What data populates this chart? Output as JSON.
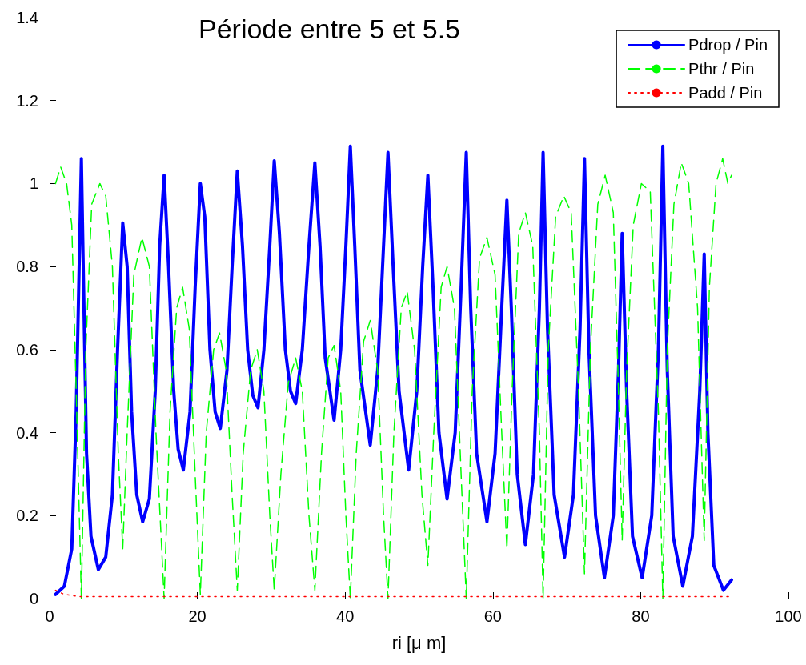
{
  "chart_data": {
    "type": "line",
    "title": "Période entre 5 et 5.5",
    "xlabel": "ri [μ m]",
    "xlim": [
      0,
      100
    ],
    "xticks": [
      0,
      20,
      40,
      60,
      80,
      100
    ],
    "ylim": [
      0,
      1.4
    ],
    "yticks": [
      0,
      0.2,
      0.4,
      0.6,
      0.8,
      1,
      1.2,
      1.4
    ],
    "grid": false,
    "legend": "top right",
    "marker": "none",
    "series": [
      {
        "name": "Pdrop / Pin",
        "color": "#0000ff",
        "line_style": "solid",
        "x": [
          0.8,
          2,
          3,
          3.6,
          4.0,
          4.3,
          4.6,
          5.0,
          5.6,
          6.6,
          7.6,
          8.5,
          9.2,
          9.9,
          10.5,
          11.1,
          11.8,
          12.6,
          13.5,
          14.3,
          14.9,
          15.5,
          16.1,
          16.8,
          17.4,
          18.1,
          19,
          19.7,
          20.4,
          21,
          21.7,
          22.4,
          23.1,
          24,
          24.7,
          25.4,
          26.1,
          26.8,
          27.5,
          28.2,
          29,
          29.8,
          30.4,
          31.1,
          31.9,
          32.6,
          33.3,
          34.2,
          35.1,
          35.9,
          36.6,
          37.3,
          38.5,
          39.4,
          40.1,
          40.7,
          41.3,
          42,
          43.4,
          44.4,
          45.2,
          45.8,
          46.5,
          47.3,
          48.6,
          49.7,
          50.5,
          51.2,
          51.9,
          52.7,
          53.8,
          54.9,
          55.7,
          56.4,
          57,
          57.8,
          59.2,
          60.3,
          61.2,
          61.9,
          62.5,
          63.3,
          64.4,
          65.5,
          66.3,
          66.8,
          67.4,
          68.3,
          69.7,
          70.9,
          71.8,
          72.4,
          73,
          73.9,
          75.1,
          76.3,
          77,
          77.5,
          78.1,
          78.9,
          80.2,
          81.5,
          82.4,
          83,
          83.6,
          84.4,
          85.7,
          87,
          88,
          88.6,
          89.1,
          89.9,
          91.2,
          92.3
        ],
        "values": [
          0.01,
          0.03,
          0.12,
          0.45,
          0.8,
          1.06,
          0.75,
          0.35,
          0.15,
          0.07,
          0.1,
          0.25,
          0.6,
          0.905,
          0.8,
          0.45,
          0.25,
          0.185,
          0.24,
          0.5,
          0.85,
          1.02,
          0.8,
          0.5,
          0.36,
          0.31,
          0.45,
          0.75,
          1.0,
          0.92,
          0.6,
          0.45,
          0.41,
          0.55,
          0.8,
          1.03,
          0.85,
          0.6,
          0.49,
          0.46,
          0.6,
          0.85,
          1.055,
          0.88,
          0.6,
          0.5,
          0.47,
          0.6,
          0.85,
          1.05,
          0.85,
          0.58,
          0.43,
          0.6,
          0.85,
          1.09,
          0.85,
          0.55,
          0.37,
          0.55,
          0.85,
          1.075,
          0.8,
          0.5,
          0.31,
          0.5,
          0.8,
          1.02,
          0.75,
          0.4,
          0.24,
          0.4,
          0.75,
          1.075,
          0.7,
          0.35,
          0.185,
          0.35,
          0.7,
          0.96,
          0.7,
          0.3,
          0.13,
          0.3,
          0.7,
          1.075,
          0.65,
          0.25,
          0.1,
          0.25,
          0.65,
          1.06,
          0.6,
          0.2,
          0.05,
          0.2,
          0.55,
          0.88,
          0.5,
          0.15,
          0.05,
          0.2,
          0.6,
          1.09,
          0.55,
          0.15,
          0.03,
          0.15,
          0.5,
          0.83,
          0.4,
          0.08,
          0.02,
          0.045
        ]
      },
      {
        "name": "Pthr / Pin",
        "color": "#00ff00",
        "line_style": "dashed",
        "x": [
          0.8,
          1.5,
          2.3,
          3,
          3.6,
          4.3,
          4.9,
          5.7,
          6.8,
          7.6,
          8.5,
          9.3,
          9.9,
          10.5,
          11.4,
          12.5,
          13.5,
          14.4,
          15.5,
          16.3,
          17.2,
          18,
          18.9,
          19.7,
          20.4,
          21.2,
          22.2,
          23,
          23.9,
          24.7,
          25.4,
          26.2,
          27.2,
          28.1,
          29,
          29.8,
          30.4,
          31.3,
          32.3,
          33.3,
          34.2,
          35.1,
          35.9,
          36.8,
          37.7,
          38.5,
          39.4,
          40.1,
          40.7,
          41.5,
          42.5,
          43.4,
          44.4,
          45.2,
          45.8,
          46.6,
          47.6,
          48.4,
          49.4,
          50.4,
          51.2,
          52,
          53,
          53.8,
          54.8,
          55.7,
          56.4,
          57.2,
          58.2,
          59.2,
          60.3,
          61.2,
          61.9,
          62.6,
          63.5,
          64.4,
          65.4,
          66.3,
          66.8,
          67.5,
          68.5,
          69.6,
          70.6,
          71.6,
          72.4,
          73.2,
          74.2,
          75.2,
          76.3,
          77,
          77.5,
          78.1,
          79,
          80.1,
          81.3,
          82.4,
          83,
          83.6,
          84.5,
          85.5,
          86.5,
          87.7,
          88.6,
          89.3,
          90.2,
          91.1,
          91.8,
          92.3
        ],
        "values": [
          1.0,
          1.04,
          1.0,
          0.9,
          0.5,
          0.0,
          0.6,
          0.95,
          1.0,
          0.97,
          0.8,
          0.35,
          0.12,
          0.4,
          0.78,
          0.87,
          0.8,
          0.4,
          0.0,
          0.45,
          0.7,
          0.75,
          0.65,
          0.3,
          0.01,
          0.4,
          0.6,
          0.64,
          0.55,
          0.25,
          0.02,
          0.35,
          0.55,
          0.6,
          0.5,
          0.2,
          0.02,
          0.3,
          0.52,
          0.58,
          0.5,
          0.2,
          0.02,
          0.35,
          0.58,
          0.61,
          0.5,
          0.2,
          0.0,
          0.35,
          0.62,
          0.67,
          0.55,
          0.2,
          0.0,
          0.4,
          0.7,
          0.74,
          0.6,
          0.25,
          0.08,
          0.4,
          0.75,
          0.8,
          0.7,
          0.3,
          0.0,
          0.5,
          0.82,
          0.87,
          0.78,
          0.4,
          0.12,
          0.5,
          0.88,
          0.93,
          0.85,
          0.4,
          0.0,
          0.6,
          0.92,
          0.97,
          0.93,
          0.5,
          0.06,
          0.6,
          0.95,
          1.02,
          0.93,
          0.5,
          0.14,
          0.55,
          0.9,
          1.0,
          0.98,
          0.45,
          0.0,
          0.6,
          0.95,
          1.05,
          1.0,
          0.7,
          0.14,
          0.75,
          1.0,
          1.06,
          1.0,
          1.02
        ]
      },
      {
        "name": "Padd / Pin",
        "color": "#ff0000",
        "line_style": "dotted",
        "x": [
          0.8,
          2,
          4,
          92.3
        ],
        "values": [
          0.02,
          0.01,
          0.005,
          0.005
        ]
      }
    ]
  }
}
